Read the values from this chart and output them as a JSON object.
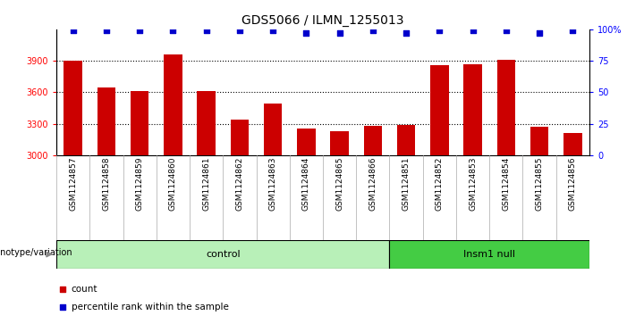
{
  "title": "GDS5066 / ILMN_1255013",
  "samples": [
    "GSM1124857",
    "GSM1124858",
    "GSM1124859",
    "GSM1124860",
    "GSM1124861",
    "GSM1124862",
    "GSM1124863",
    "GSM1124864",
    "GSM1124865",
    "GSM1124866",
    "GSM1124851",
    "GSM1124852",
    "GSM1124853",
    "GSM1124854",
    "GSM1124855",
    "GSM1124856"
  ],
  "counts": [
    3900,
    3650,
    3610,
    3960,
    3610,
    3340,
    3490,
    3260,
    3230,
    3280,
    3290,
    3860,
    3870,
    3910,
    3270,
    3210
  ],
  "percentile_ranks": [
    99,
    99,
    99,
    99,
    99,
    99,
    99,
    97,
    97,
    99,
    97,
    99,
    99,
    99,
    97,
    99
  ],
  "bar_color": "#cc0000",
  "dot_color": "#0000cc",
  "ylim_left": [
    3000,
    4200
  ],
  "ylim_right": [
    0,
    100
  ],
  "yticks_left": [
    3000,
    3300,
    3600,
    3900
  ],
  "yticks_right": [
    0,
    25,
    50,
    75,
    100
  ],
  "yticklabels_right": [
    "0",
    "25",
    "50",
    "75",
    "100%"
  ],
  "groups": [
    {
      "label": "control",
      "start": 0,
      "end": 10,
      "color": "#b8f0b8"
    },
    {
      "label": "Insm1 null",
      "start": 10,
      "end": 16,
      "color": "#44cc44"
    }
  ],
  "group_row_label": "genotype/variation",
  "legend_items": [
    {
      "color": "#cc0000",
      "label": "count"
    },
    {
      "color": "#0000cc",
      "label": "percentile rank within the sample"
    }
  ],
  "bar_width": 0.55,
  "bg_color_plot": "#ffffff",
  "bg_color_tickrow": "#d8d8d8",
  "dot_size": 18,
  "grid_color": "#000000",
  "title_fontsize": 10,
  "tick_fontsize": 7,
  "xlabel_fontsize": 6.5
}
